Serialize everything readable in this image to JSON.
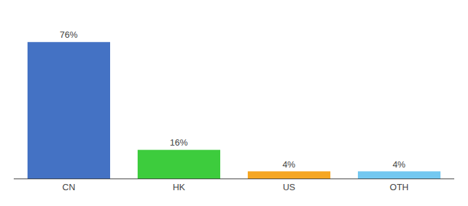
{
  "chart_data": {
    "type": "bar",
    "categories": [
      "CN",
      "HK",
      "US",
      "OTH"
    ],
    "values": [
      76,
      16,
      4,
      4
    ],
    "value_labels": [
      "76%",
      "16%",
      "4%",
      "4%"
    ],
    "colors": [
      "#4472c4",
      "#3dcc3d",
      "#f5a623",
      "#74c8f0"
    ],
    "ylim": [
      0,
      88
    ],
    "grid": false,
    "data_labels": true,
    "tick_labels": "x"
  }
}
